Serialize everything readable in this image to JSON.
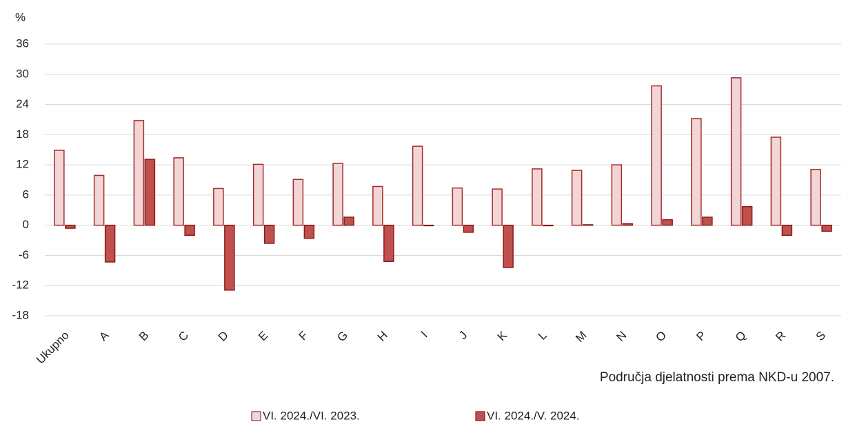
{
  "chart_data": {
    "type": "bar",
    "y_label": "%",
    "x_label": "Područja djelatnosti prema NKD-u 2007.",
    "categories": [
      "Ukupno",
      "A",
      "B",
      "C",
      "D",
      "E",
      "F",
      "G",
      "H",
      "I",
      "J",
      "K",
      "L",
      "M",
      "N",
      "O",
      "P",
      "Q",
      "R",
      "S"
    ],
    "series": [
      {
        "name": "VI. 2024./VI. 2023.",
        "color": "#f2d6d6",
        "stroke": "#a52a2a",
        "values": [
          14.9,
          9.9,
          20.8,
          13.4,
          7.3,
          12.1,
          9.1,
          12.3,
          7.7,
          15.7,
          7.4,
          7.2,
          11.2,
          10.9,
          12.0,
          27.7,
          21.2,
          29.3,
          17.5,
          11.1
        ]
      },
      {
        "name": "VI. 2024./V. 2024.",
        "color": "#c0504d",
        "stroke": "#8b1a1a",
        "values": [
          -0.6,
          -7.3,
          13.1,
          -2.0,
          -12.9,
          -3.6,
          -2.6,
          1.6,
          -7.2,
          -0.1,
          -1.4,
          -8.4,
          -0.1,
          0.1,
          0.3,
          1.1,
          1.6,
          3.7,
          -2.0,
          -1.2
        ]
      }
    ],
    "ylim": [
      -18,
      36
    ],
    "yticks": [
      -18,
      -12,
      -6,
      0,
      6,
      12,
      18,
      24,
      30,
      36
    ],
    "grid": true,
    "legend": "bottom"
  }
}
